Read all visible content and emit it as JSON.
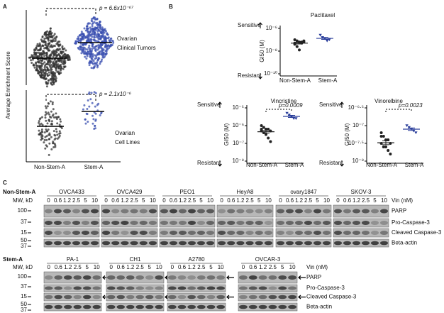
{
  "panel_a": {
    "label": "A",
    "y_label": "Average Enrichment Score",
    "categories": [
      "Non-Stem-A",
      "Stem-A"
    ],
    "top": {
      "p": "p = 6.6x10⁻⁶⁷",
      "group": [
        "Ovarian",
        "Clinical Tumors"
      ]
    },
    "bottom": {
      "p": "p = 2.1x10⁻⁶",
      "group": [
        "Ovarian",
        "Cell Lines"
      ]
    }
  },
  "panel_b": {
    "label": "B",
    "sensitive": "Sensitive",
    "resistant": "Resistant",
    "y_label": "GI50 (M)",
    "categories": [
      "Non-Stem-A",
      "Stem-A"
    ],
    "plots": [
      {
        "title": "Paclitaxel",
        "ylim": [
          -10,
          -6
        ],
        "yticks": [
          {
            "value": -6,
            "label": "10⁻⁶"
          },
          {
            "value": -8,
            "label": "10⁻⁸"
          },
          {
            "value": -10,
            "label": "10⁻¹⁰"
          }
        ],
        "series": [
          {
            "color": "#222222",
            "values": [
              -7.0,
              -7.1,
              -7.2,
              -7.3,
              -7.2,
              -7.4,
              -7.6,
              -7.9,
              -7.2,
              -7.1,
              -7.3
            ]
          },
          {
            "color": "#2b3f9b",
            "values": [
              -6.6,
              -6.8,
              -6.9,
              -7.1,
              -7.0
            ]
          }
        ]
      },
      {
        "title": "Vincristine",
        "p": "p=0.0009",
        "ylim": [
          -8,
          -5
        ],
        "yticks": [
          {
            "value": -5,
            "label": "10⁻⁵"
          },
          {
            "value": -6,
            "label": "10⁻⁶"
          },
          {
            "value": -7,
            "label": "10⁻⁷"
          },
          {
            "value": -8,
            "label": "10⁻⁸"
          }
        ],
        "series": [
          {
            "color": "#222222",
            "values": [
              -6.0,
              -6.1,
              -6.2,
              -6.2,
              -6.3,
              -6.3,
              -6.4,
              -6.5,
              -6.7,
              -6.9,
              -6.2
            ]
          },
          {
            "color": "#2b3f9b",
            "values": [
              -5.3,
              -5.4,
              -5.5,
              -5.6,
              -5.6
            ]
          }
        ]
      },
      {
        "title": "Vinorelbine",
        "p": "p=0.0023",
        "ylim": [
          -8,
          -6.5
        ],
        "yticks": [
          {
            "value": -6.5,
            "label": "10⁻⁶·⁵"
          },
          {
            "value": -7,
            "label": "10⁻⁷"
          },
          {
            "value": -7.5,
            "label": "10⁻⁷·⁵"
          },
          {
            "value": -8,
            "label": "10⁻⁸"
          }
        ],
        "series": [
          {
            "color": "#222222",
            "values": [
              -7.2,
              -7.3,
              -7.4,
              -7.4,
              -7.5,
              -7.5,
              -7.6,
              -7.6,
              -7.7,
              -7.8,
              -7.3
            ]
          },
          {
            "color": "#2b3f9b",
            "values": [
              -7.0,
              -7.05,
              -7.1,
              -7.15,
              -7.2
            ]
          }
        ]
      }
    ]
  },
  "panel_c": {
    "label": "C",
    "lanes": [
      "0",
      "0.6",
      "1.2",
      "2.5",
      "5",
      "10"
    ],
    "vin": "Vin (nM)",
    "mw": "MW, kD",
    "bands": [
      "PARP",
      "Pro-Caspase-3",
      "Cleaved Caspase-3",
      "Beta-actin"
    ],
    "groups": [
      {
        "name": "Non-Stem-A",
        "markers": [
          "100",
          "37",
          "15",
          "50",
          "37"
        ],
        "lines": [
          {
            "name": "OVCA433",
            "color": "#1f7a2e"
          },
          {
            "name": "OVCA429",
            "color": "#1f7a2e"
          },
          {
            "name": "PEO1",
            "color": "#1f7a2e"
          },
          {
            "name": "HeyA8",
            "color": "#d02020"
          },
          {
            "name": "ovary1847",
            "color": "#d02020"
          },
          {
            "name": "SKOV-3",
            "color": "#d02020"
          }
        ]
      },
      {
        "name": "Stem-A",
        "markers": [
          "100",
          "37",
          "15",
          "50",
          "37"
        ],
        "lines": [
          {
            "name": "PA-1",
            "color": "#2b3f9b"
          },
          {
            "name": "CH1",
            "color": "#2b3f9b"
          },
          {
            "name": "A2780",
            "color": "#2b3f9b"
          },
          {
            "name": "OVCAR-3",
            "color": "#2b3f9b"
          }
        ]
      }
    ]
  }
}
